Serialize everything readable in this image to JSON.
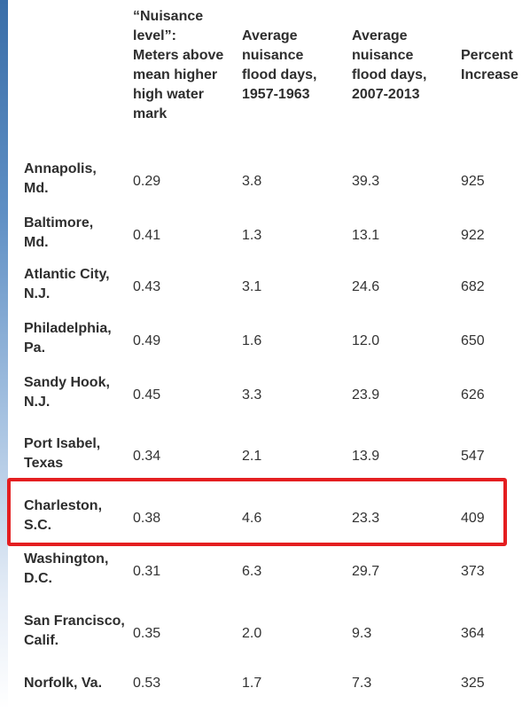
{
  "table": {
    "headers": [
      "“Nuisance level”: Meters above mean higher high water mark",
      "Average nuisance flood days, 1957-1963",
      "Average nuisance flood days, 2007-2013",
      "Percent Increase"
    ],
    "header_lines": [
      "“Nuisance\nlevel”:\nMeters above\nmean higher\nhigh water\nmark",
      "Average\nnuisance\nflood days,\n1957-1963",
      "Average\nnuisance\nflood days,\n2007-2013",
      "Percent\nIncrease"
    ],
    "rows": [
      {
        "city": "Annapolis,\nMd.",
        "level": "0.29",
        "days_1957_1963": "3.8",
        "days_2007_2013": "39.3",
        "percent_increase": "925"
      },
      {
        "city": "Baltimore,\nMd.",
        "level": "0.41",
        "days_1957_1963": "1.3",
        "days_2007_2013": "13.1",
        "percent_increase": "922"
      },
      {
        "city": "Atlantic City,\nN.J.",
        "level": "0.43",
        "days_1957_1963": "3.1",
        "days_2007_2013": "24.6",
        "percent_increase": "682"
      },
      {
        "city": "Philadelphia,\nPa.",
        "level": "0.49",
        "days_1957_1963": "1.6",
        "days_2007_2013": "12.0",
        "percent_increase": "650"
      },
      {
        "city": "Sandy Hook,\nN.J.",
        "level": "0.45",
        "days_1957_1963": "3.3",
        "days_2007_2013": "23.9",
        "percent_increase": "626"
      },
      {
        "city": "Port Isabel,\nTexas",
        "level": "0.34",
        "days_1957_1963": "2.1",
        "days_2007_2013": "13.9",
        "percent_increase": "547"
      },
      {
        "city": "Charleston,\nS.C.",
        "level": "0.38",
        "days_1957_1963": "4.6",
        "days_2007_2013": "23.3",
        "percent_increase": "409"
      },
      {
        "city": "Washington,\nD.C.",
        "level": "0.31",
        "days_1957_1963": "6.3",
        "days_2007_2013": "29.7",
        "percent_increase": "373"
      },
      {
        "city": "San Francisco,\nCalif.",
        "level": "0.35",
        "days_1957_1963": "2.0",
        "days_2007_2013": "9.3",
        "percent_increase": "364"
      },
      {
        "city": "Norfolk, Va.",
        "level": "0.53",
        "days_1957_1963": "1.7",
        "days_2007_2013": "7.3",
        "percent_increase": "325"
      }
    ],
    "highlighted_row": "Charleston,\nS.C."
  },
  "colors": {
    "highlight_border": "#e41e20",
    "edge_bar_top": "#3a6ea8",
    "text": "#333333"
  },
  "chart_data": {
    "type": "table",
    "columns": [
      "“Nuisance level”: Meters above mean higher high water mark",
      "Average nuisance flood days, 1957-1963",
      "Average nuisance flood days, 2007-2013",
      "Percent Increase"
    ],
    "row_labels": [
      "Annapolis, Md.",
      "Baltimore, Md.",
      "Atlantic City, N.J.",
      "Philadelphia, Pa.",
      "Sandy Hook, N.J.",
      "Port Isabel, Texas",
      "Charleston, S.C.",
      "Washington, D.C.",
      "San Francisco, Calif.",
      "Norfolk, Va."
    ],
    "values": [
      [
        0.29,
        3.8,
        39.3,
        925
      ],
      [
        0.41,
        1.3,
        13.1,
        922
      ],
      [
        0.43,
        3.1,
        24.6,
        682
      ],
      [
        0.49,
        1.6,
        12.0,
        650
      ],
      [
        0.45,
        3.3,
        23.9,
        626
      ],
      [
        0.34,
        2.1,
        13.9,
        547
      ],
      [
        0.38,
        4.6,
        23.3,
        409
      ],
      [
        0.31,
        6.3,
        29.7,
        373
      ],
      [
        0.35,
        2.0,
        9.3,
        364
      ],
      [
        0.53,
        1.7,
        7.3,
        325
      ]
    ]
  }
}
